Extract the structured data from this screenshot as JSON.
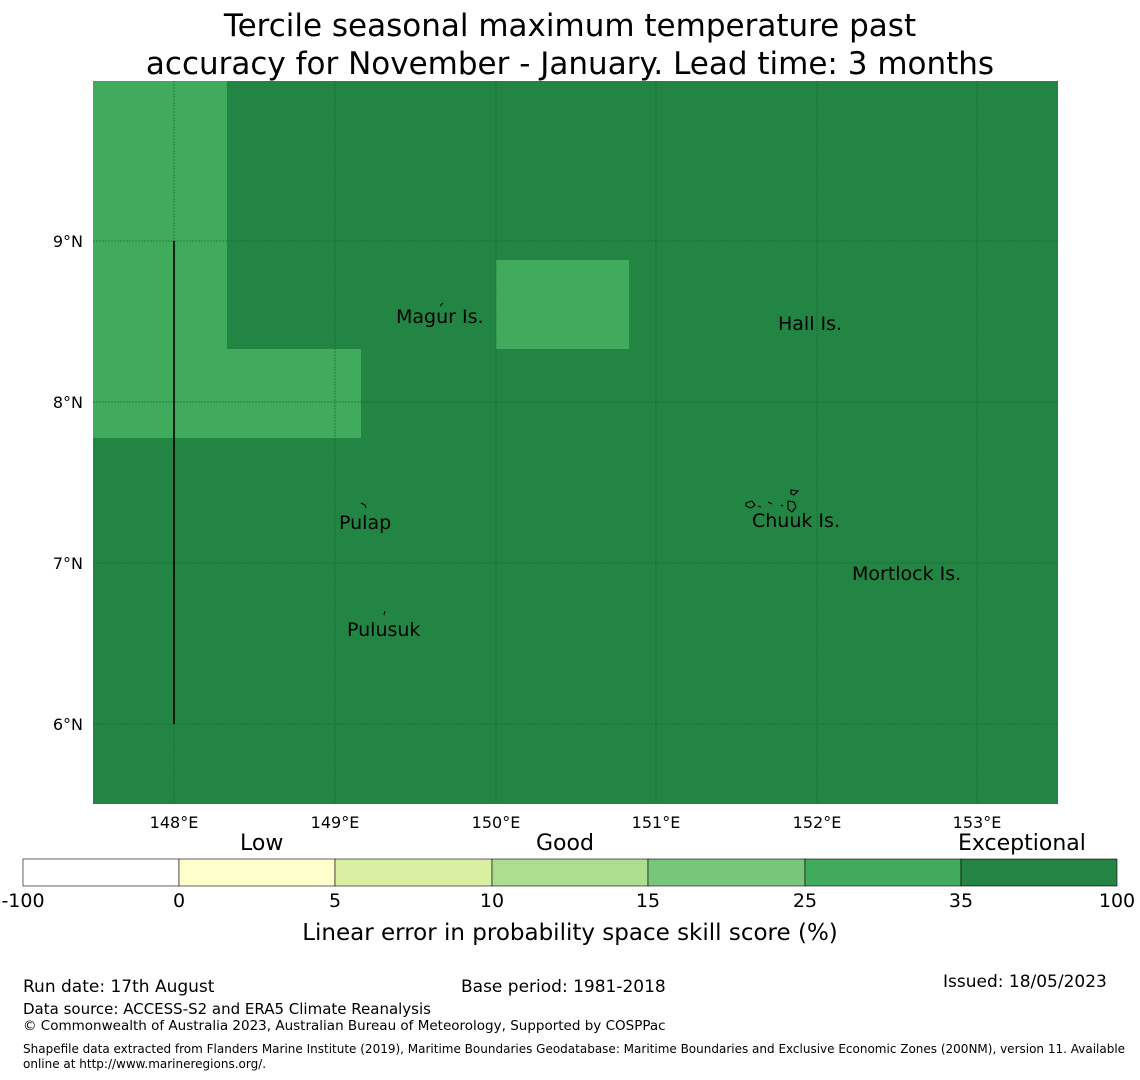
{
  "title": {
    "line1": "Tercile seasonal maximum temperature past",
    "line2": "accuracy for November - January. Lead time: 3 months"
  },
  "map": {
    "lon_labels": [
      "148°E",
      "149°E",
      "150°E",
      "151°E",
      "152°E",
      "153°E"
    ],
    "lat_labels": [
      "9°N",
      "8°N",
      "7°N",
      "6°N"
    ],
    "places": [
      "Magur Is.",
      "Hall Is.",
      "Pulap",
      "Chuuk Is.",
      "Mortlock Is.",
      "Pulusuk"
    ],
    "colors": {
      "exceptional": "#238543",
      "high_good": "#41ab5d",
      "grid": "#1a5f30"
    }
  },
  "colorbar": {
    "categories": [
      "Low",
      "Good",
      "Exceptional"
    ],
    "ticks": [
      "-100",
      "0",
      "5",
      "10",
      "15",
      "25",
      "35",
      "100"
    ],
    "colors": [
      "#ffffff",
      "#ffffcc",
      "#d9f0a3",
      "#addd8e",
      "#78c679",
      "#41ab5d",
      "#238443"
    ],
    "axis_title": "Linear error in probability space skill score (%)"
  },
  "footer": {
    "run_date": "Run date: 17th August",
    "base_period": "Base period: 1981-2018",
    "issued": "Issued: 18/05/2023",
    "data_source": "Data source: ACCESS-S2 and ERA5 Climate Reanalysis",
    "copyright": "© Commonwealth of Australia 2023, Australian Bureau of Meteorology, Supported by COSPPac",
    "shapefile": "Shapefile data extracted from Flanders Marine Institute (2019), Maritime Boundaries Geodatabase: Maritime Boundaries and Exclusive Economic Zones (200NM), version 11. Available online at http://www.marineregions.org/."
  }
}
